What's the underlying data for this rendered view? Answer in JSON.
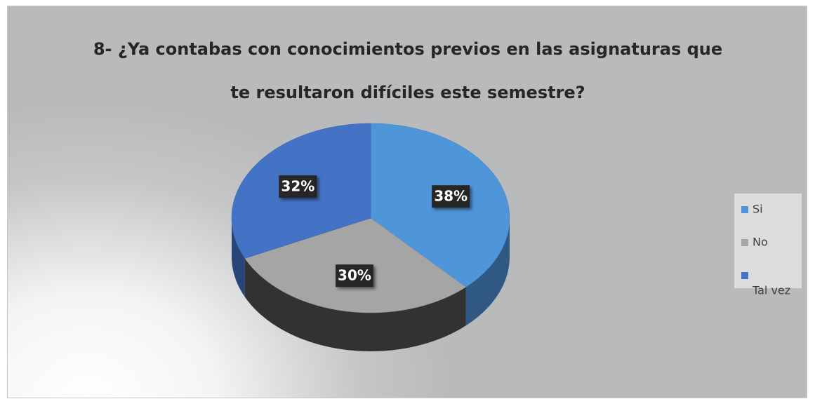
{
  "chart_data": {
    "type": "pie",
    "title": "8- ¿Ya contabas con conocimientos previos en las asignaturas que te resultaron difíciles este semestre?",
    "categories": [
      "Si",
      "No",
      "Tal vez"
    ],
    "values": [
      38,
      30,
      32
    ],
    "value_labels": [
      "38%",
      "30%",
      "32%"
    ],
    "colors": [
      "#4f95d9",
      "#a5a5a5",
      "#4472c4"
    ],
    "legend": "right"
  }
}
